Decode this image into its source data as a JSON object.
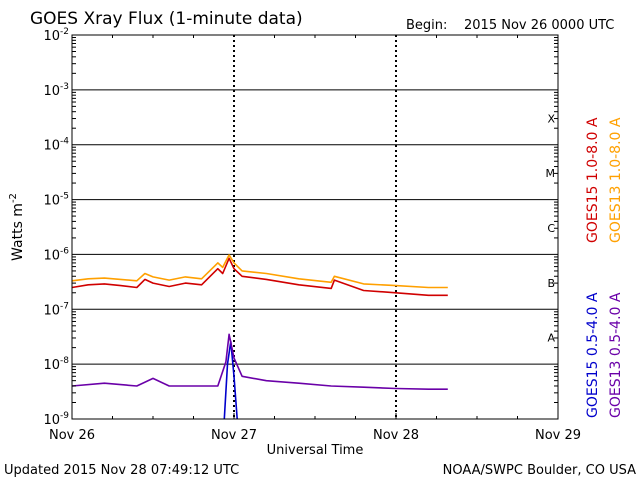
{
  "chart_data": {
    "type": "line",
    "title": "GOES Xray Flux (1-minute data)",
    "begin_label": "Begin:",
    "begin_value": "2015 Nov 26 0000 UTC",
    "xlabel": "Universal Time",
    "ylabel_base": "Watts m",
    "ylabel_exp": "-2",
    "log_scale_y": true,
    "ylim": [
      1e-09,
      0.01
    ],
    "y_ticks": [
      {
        "exp": -9,
        "base": "10",
        "sup": "-9"
      },
      {
        "exp": -8,
        "base": "10",
        "sup": "-8"
      },
      {
        "exp": -7,
        "base": "10",
        "sup": "-7"
      },
      {
        "exp": -6,
        "base": "10",
        "sup": "-6"
      },
      {
        "exp": -5,
        "base": "10",
        "sup": "-5"
      },
      {
        "exp": -4,
        "base": "10",
        "sup": "-4"
      },
      {
        "exp": -3,
        "base": "10",
        "sup": "-3"
      },
      {
        "exp": -2,
        "base": "10",
        "sup": "-2"
      }
    ],
    "xlim_days": [
      0,
      3
    ],
    "x_ticks": [
      {
        "day": 0,
        "label": "Nov 26"
      },
      {
        "day": 1,
        "label": "Nov 27"
      },
      {
        "day": 2,
        "label": "Nov 28"
      },
      {
        "day": 3,
        "label": "Nov 29"
      }
    ],
    "flare_classes": [
      {
        "label": "A",
        "exp": -8
      },
      {
        "label": "B",
        "exp": -7
      },
      {
        "label": "C",
        "exp": -6
      },
      {
        "label": "M",
        "exp": -5
      },
      {
        "label": "X",
        "exp": -4
      }
    ],
    "grid": true,
    "series": [
      {
        "name": "GOES15 1.0-8.0 A",
        "color": "#d00000",
        "x": [
          0,
          0.1,
          0.2,
          0.3,
          0.4,
          0.45,
          0.5,
          0.6,
          0.7,
          0.8,
          0.9,
          0.93,
          0.97,
          1.0,
          1.05,
          1.2,
          1.4,
          1.6,
          1.62,
          1.8,
          2.0,
          2.2,
          2.32
        ],
        "y": [
          2.5e-07,
          2.8e-07,
          2.9e-07,
          2.7e-07,
          2.5e-07,
          3.5e-07,
          3e-07,
          2.6e-07,
          3e-07,
          2.8e-07,
          5.5e-07,
          4.5e-07,
          8.5e-07,
          5.5e-07,
          4e-07,
          3.5e-07,
          2.8e-07,
          2.4e-07,
          3.4e-07,
          2.2e-07,
          2e-07,
          1.8e-07,
          1.8e-07
        ]
      },
      {
        "name": "GOES13 1.0-8.0 A",
        "color": "#ffa000",
        "x": [
          0,
          0.1,
          0.2,
          0.3,
          0.4,
          0.45,
          0.5,
          0.6,
          0.7,
          0.8,
          0.9,
          0.93,
          0.97,
          1.0,
          1.05,
          1.2,
          1.4,
          1.6,
          1.62,
          1.8,
          2.0,
          2.2,
          2.32
        ],
        "y": [
          3.3e-07,
          3.6e-07,
          3.7e-07,
          3.5e-07,
          3.3e-07,
          4.5e-07,
          3.9e-07,
          3.4e-07,
          3.9e-07,
          3.6e-07,
          7e-07,
          5.8e-07,
          9.8e-07,
          7e-07,
          5e-07,
          4.5e-07,
          3.6e-07,
          3.1e-07,
          4e-07,
          2.9e-07,
          2.7e-07,
          2.5e-07,
          2.5e-07
        ]
      },
      {
        "name": "GOES15 0.5-4.0 A",
        "color": "#0000cc",
        "x": [
          0.94,
          0.96,
          0.98,
          1.0,
          1.02
        ],
        "y": [
          1e-09,
          1e-08,
          2.6e-08,
          6e-09,
          1e-09
        ]
      },
      {
        "name": "GOES13 0.5-4.0 A",
        "color": "#6a00a8",
        "x": [
          0,
          0.2,
          0.4,
          0.5,
          0.6,
          0.9,
          0.95,
          0.97,
          1.0,
          1.05,
          1.2,
          1.4,
          1.6,
          1.8,
          2.0,
          2.2,
          2.32
        ],
        "y": [
          4e-09,
          4.5e-09,
          4e-09,
          5.5e-09,
          4e-09,
          4e-09,
          1.1e-08,
          3.5e-08,
          1.3e-08,
          6e-09,
          5e-09,
          4.5e-09,
          4e-09,
          3.8e-09,
          3.6e-09,
          3.5e-09,
          3.5e-09
        ]
      }
    ]
  },
  "footer": {
    "updated": "Updated 2015 Nov 28 07:49:12 UTC",
    "credit": "NOAA/SWPC Boulder, CO USA"
  }
}
